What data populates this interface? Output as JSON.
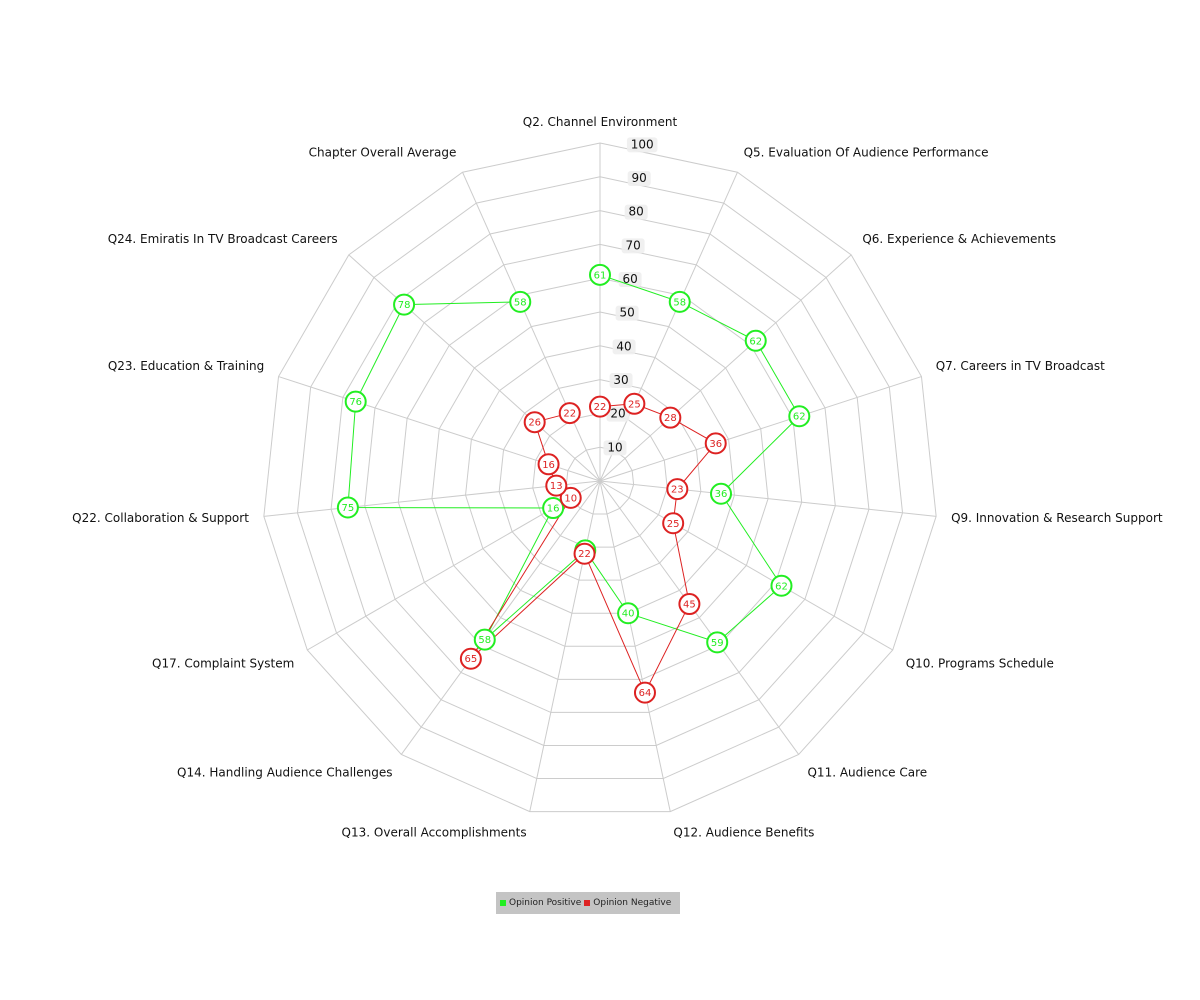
{
  "chart_data": {
    "type": "radar",
    "axes": [
      "Q2. Channel Environment",
      "Q5. Evaluation Of Audience Performance",
      "Q6. Experience & Achievements",
      "Q7. Careers in TV Broadcast",
      "Q9. Innovation & Research Support",
      "Q10. Programs Schedule",
      "Q11. Audience Care",
      "Q12. Audience Benefits",
      "Q13. Overall Accomplishments",
      "Q14. Handling Audience Challenges",
      "Q17. Complaint System",
      "Q22. Collaboration & Support",
      "Q23. Education & Training",
      "Q24. Emiratis In TV Broadcast Careers",
      "Chapter Overall Average"
    ],
    "ticks": [
      "10",
      "20",
      "30",
      "40",
      "50",
      "60",
      "70",
      "80",
      "90",
      "100"
    ],
    "range": [
      0,
      100
    ],
    "series": [
      {
        "name": "Opinion Positive",
        "color": "#22ee22",
        "values": [
          61,
          58,
          62,
          62,
          36,
          62,
          59,
          40,
          21,
          58,
          16,
          75,
          76,
          78,
          58
        ]
      },
      {
        "name": "Opinion Negative",
        "color": "#dd2222",
        "values": [
          22,
          25,
          28,
          36,
          23,
          25,
          45,
          64,
          22,
          65,
          10,
          13,
          16,
          26,
          22
        ]
      }
    ],
    "legend_position": "bottom-center"
  }
}
